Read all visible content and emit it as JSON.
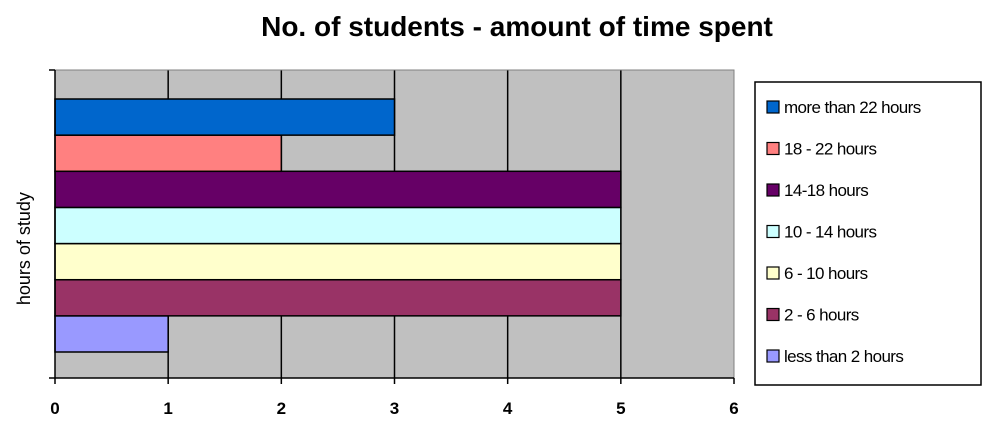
{
  "chart_data": {
    "type": "bar",
    "orientation": "horizontal",
    "title": "No. of students - amount of time spent",
    "xlabel": "",
    "ylabel": "hours of study",
    "xlim": [
      0,
      6
    ],
    "x_ticks": [
      "0",
      "1",
      "2",
      "3",
      "4",
      "5",
      "6"
    ],
    "grid": true,
    "legend_position": "right",
    "plot_background": "#c0c0c0",
    "series": [
      {
        "name": "less than 2 hours",
        "value": 1,
        "color": "#9999ff"
      },
      {
        "name": "2 - 6 hours",
        "value": 5,
        "color": "#993366"
      },
      {
        "name": "6 - 10 hours",
        "value": 5,
        "color": "#ffffcc"
      },
      {
        "name": "10 - 14 hours",
        "value": 5,
        "color": "#ccffff"
      },
      {
        "name": "14-18 hours",
        "value": 5,
        "color": "#660066"
      },
      {
        "name": "18 - 22 hours",
        "value": 2,
        "color": "#ff8080"
      },
      {
        "name": "more than 22 hours",
        "value": 3,
        "color": "#0066cc"
      }
    ]
  }
}
